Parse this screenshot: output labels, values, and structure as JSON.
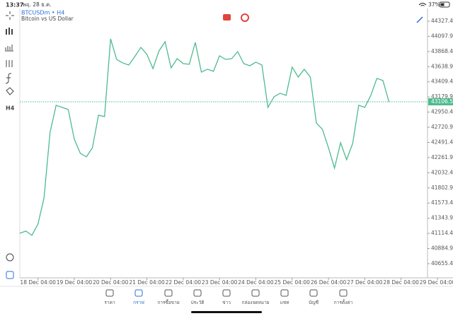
{
  "status_bar": {
    "time": "13:37",
    "date": "พฤ. 28 ธ.ค.",
    "battery": "37%"
  },
  "header": {
    "symbol": "BTCUSDm • H4",
    "description": "Bitcoin vs US Dollar"
  },
  "toolbar": {
    "timeframe": "H4"
  },
  "chart_data": {
    "type": "line",
    "categories": [
      null,
      null,
      null,
      "18 Dec 04:00",
      null,
      null,
      null,
      null,
      null,
      "19 Dec 04:00",
      null,
      null,
      null,
      null,
      null,
      "20 Dec 04:00",
      null,
      null,
      null,
      null,
      null,
      "21 Dec 04:00",
      null,
      null,
      null,
      null,
      null,
      "22 Dec 04:00",
      null,
      null,
      null,
      null,
      null,
      "23 Dec 04:00",
      null,
      null,
      null,
      null,
      null,
      "24 Dec 04:00",
      null,
      null,
      null,
      null,
      null,
      "25 Dec 04:00",
      null,
      null,
      null,
      null,
      null,
      "26 Dec 04:00",
      null,
      null,
      null,
      null,
      null,
      "27 Dec 04:00",
      null,
      null,
      null,
      null,
      null,
      "28 Dec 04:00",
      null,
      null,
      null,
      null,
      null,
      "29 Dec 04:00"
    ],
    "series": [
      {
        "name": "BTCUSDm",
        "color": "#4dbb8f",
        "values": [
          41117,
          41149,
          41085,
          41256,
          41652,
          42647,
          43054,
          43022,
          42990,
          42540,
          42326,
          42273,
          42412,
          42904,
          42883,
          44060,
          43749,
          43696,
          43664,
          43792,
          43931,
          43825,
          43610,
          43878,
          44017,
          43621,
          43760,
          43685,
          43675,
          44006,
          43557,
          43600,
          43568,
          43803,
          43749,
          43760,
          43867,
          43685,
          43653,
          43707,
          43664,
          43022,
          43182,
          43236,
          43204,
          43632,
          43482,
          43600,
          43482,
          42786,
          42690,
          42412,
          42102,
          42487,
          42230,
          42476,
          43054,
          43022,
          43204,
          43461,
          43429,
          43106.51,
          null,
          null,
          null,
          null,
          null,
          null,
          null,
          null
        ]
      }
    ],
    "ylim": [
      40441,
      44520
    ],
    "yticks": [
      {
        "value": 44327.4,
        "label": "44327.40"
      },
      {
        "value": 44097.9,
        "label": "44097.90"
      },
      {
        "value": 43868.4,
        "label": "43868.40"
      },
      {
        "value": 43638.9,
        "label": "43638.90"
      },
      {
        "value": 43409.4,
        "label": "43409.40"
      },
      {
        "value": 43179.9,
        "label": "43179.90"
      },
      {
        "value": 42950.4,
        "label": "42950.40"
      },
      {
        "value": 42720.9,
        "label": "42720.90"
      },
      {
        "value": 42491.4,
        "label": "42491.40"
      },
      {
        "value": 42261.9,
        "label": "42261.90"
      },
      {
        "value": 42032.4,
        "label": "42032.40"
      },
      {
        "value": 41802.9,
        "label": "41802.90"
      },
      {
        "value": 41573.4,
        "label": "41573.40"
      },
      {
        "value": 41343.9,
        "label": "41343.90"
      },
      {
        "value": 41114.4,
        "label": "41114.40"
      },
      {
        "value": 40884.9,
        "label": "40884.90"
      },
      {
        "value": 40655.4,
        "label": "40655.40"
      }
    ],
    "last_price": {
      "value": 43106.51,
      "label": "43106.51"
    }
  },
  "nav": [
    {
      "label": "ราคา"
    },
    {
      "label": "กราฟ"
    },
    {
      "label": "การซื้อขาย"
    },
    {
      "label": "ประวัติ"
    },
    {
      "label": "ข่าว"
    },
    {
      "label": "กล่องจดหมาย"
    },
    {
      "label": "แชท"
    },
    {
      "label": "บัญชี"
    },
    {
      "label": "การตั้งค่า"
    }
  ]
}
